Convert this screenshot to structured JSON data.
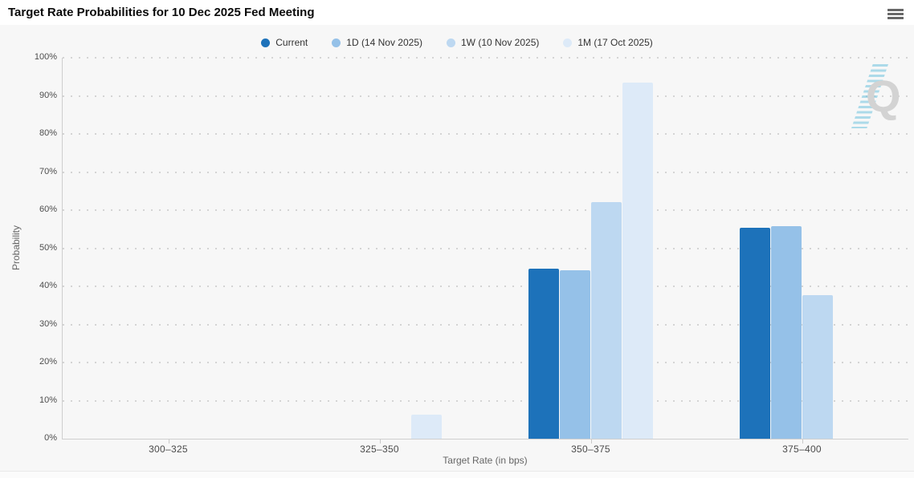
{
  "header": {
    "title": "Target Rate Probabilities for 10 Dec 2025 Fed Meeting",
    "menu_icon": "hamburger-menu-icon"
  },
  "watermark": {
    "letter": "Q"
  },
  "colors": {
    "accent_current": "#1d72ba",
    "accent_1d": "#95c1e8",
    "accent_1w": "#bdd8f1",
    "accent_1m": "#ddeaf8",
    "header_bg": "#ffffff",
    "chart_bg": "#f7f7f7",
    "grid_dot": "#d4d4d4",
    "axis_line": "#cfcfcf"
  },
  "chart_data": {
    "type": "bar",
    "title": "Target Rate Probabilities for 10 Dec 2025 Fed Meeting",
    "xlabel": "Target Rate (in bps)",
    "ylabel": "Probability",
    "ylim": [
      0,
      100
    ],
    "ytick_step": 10,
    "ytick_suffix": "%",
    "grid": "dotted-horizontal",
    "legend_position": "top-center",
    "categories": [
      "300–325",
      "325–350",
      "350–375",
      "375–400"
    ],
    "series": [
      {
        "name": "Current",
        "color": "#1d72ba",
        "values": [
          0,
          0,
          44.6,
          55.4
        ]
      },
      {
        "name": "1D (14 Nov 2025)",
        "color": "#95c1e8",
        "values": [
          0,
          0,
          44.2,
          55.8
        ]
      },
      {
        "name": "1W (10 Nov 2025)",
        "color": "#bdd8f1",
        "values": [
          0,
          0,
          62.1,
          37.7
        ]
      },
      {
        "name": "1M (17 Oct 2025)",
        "color": "#ddeaf8",
        "values": [
          0,
          6.3,
          93.5,
          0
        ]
      }
    ]
  }
}
